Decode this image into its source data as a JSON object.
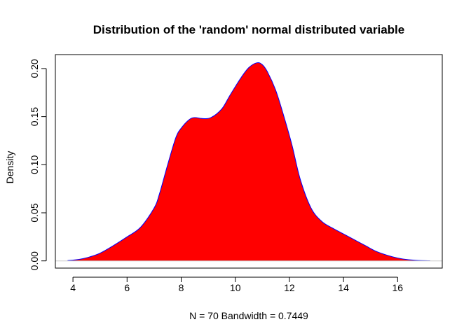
{
  "chart_data": {
    "type": "area",
    "title": "Distribution of the 'random' normal distributed variable",
    "xlabel": "N = 70   Bandwidth = 0.7449",
    "ylabel": "Density",
    "xlim": [
      3.35,
      17.65
    ],
    "ylim": [
      -0.0075,
      0.2145
    ],
    "x_ticks": [
      4,
      6,
      8,
      10,
      12,
      14,
      16
    ],
    "x_tick_labels": [
      "4",
      "6",
      "8",
      "10",
      "12",
      "14",
      "16"
    ],
    "y_ticks": [
      0.0,
      0.05,
      0.1,
      0.15,
      0.2
    ],
    "y_tick_labels": [
      "0.00",
      "0.05",
      "0.10",
      "0.15",
      "0.20"
    ],
    "fill_color": "#ff0000",
    "line_color": "#0000ff",
    "baseline_color": "#c8c8c8",
    "series": [
      {
        "x": [
          3.8,
          4.0,
          4.3,
          4.6,
          5.0,
          5.5,
          6.0,
          6.5,
          7.0,
          7.2,
          7.5,
          7.8,
          8.0,
          8.3,
          8.5,
          8.8,
          9.1,
          9.5,
          9.8,
          10.2,
          10.5,
          10.8,
          11.0,
          11.2,
          11.5,
          11.8,
          12.1,
          12.4,
          12.8,
          13.2,
          13.6,
          14.0,
          14.4,
          14.8,
          15.2,
          15.6,
          16.0,
          16.4,
          16.8,
          17.2
        ],
        "y": [
          0.0003,
          0.0008,
          0.002,
          0.004,
          0.008,
          0.016,
          0.025,
          0.035,
          0.055,
          0.07,
          0.1,
          0.128,
          0.138,
          0.147,
          0.149,
          0.148,
          0.149,
          0.158,
          0.172,
          0.19,
          0.201,
          0.206,
          0.204,
          0.196,
          0.177,
          0.15,
          0.12,
          0.085,
          0.055,
          0.041,
          0.034,
          0.028,
          0.022,
          0.016,
          0.01,
          0.006,
          0.003,
          0.0012,
          0.0004,
          0.0001
        ]
      }
    ]
  }
}
